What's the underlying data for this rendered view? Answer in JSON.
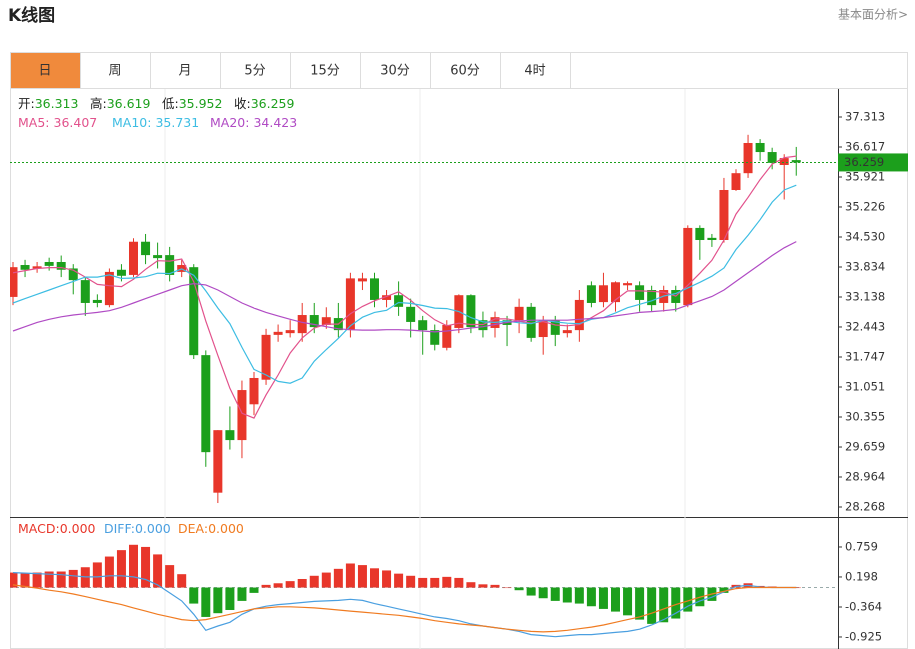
{
  "chart_data": {
    "type": "candlestick",
    "title": "K线图",
    "link": "基本面分析>",
    "tabs": [
      "日",
      "周",
      "月",
      "5分",
      "15分",
      "30分",
      "60分",
      "4时"
    ],
    "active_tab": 0,
    "up_color": "#e8362a",
    "down_color": "#1c9f1c",
    "ohlc_labels": [
      "开:",
      "高:",
      "低:",
      "收:"
    ],
    "open": [
      33.14,
      33.88,
      33.8,
      33.95,
      33.95,
      33.8,
      33.53,
      33.07,
      32.95,
      33.77,
      33.65,
      34.42,
      34.11,
      34.11,
      33.72,
      33.83,
      31.79,
      28.6,
      30.05,
      29.82,
      30.65,
      31.22,
      32.26,
      32.3,
      32.3,
      32.72,
      32.49,
      32.65,
      32.37,
      33.5,
      33.57,
      33.07,
      33.18,
      32.91,
      32.6,
      32.37,
      31.96,
      32.42,
      33.18,
      32.6,
      32.42,
      32.6,
      32.6,
      32.91,
      32.21,
      32.6,
      32.3,
      32.37,
      33.41,
      33.02,
      33.02,
      33.41,
      33.41,
      33.3,
      33.0,
      33.3,
      32.95,
      34.74,
      34.51,
      34.46,
      35.62,
      36.01,
      36.71,
      36.5,
      36.2,
      36.313
    ],
    "high": [
      33.95,
      34.0,
      33.95,
      34.05,
      34.1,
      33.9,
      33.6,
      33.2,
      33.8,
      33.9,
      34.5,
      34.6,
      34.4,
      34.3,
      34.0,
      33.9,
      31.9,
      30.05,
      30.6,
      31.2,
      31.4,
      32.4,
      32.5,
      32.6,
      33.0,
      33.0,
      32.9,
      33.0,
      33.7,
      33.7,
      33.7,
      33.3,
      33.5,
      33.1,
      32.7,
      32.5,
      32.6,
      33.2,
      33.2,
      32.8,
      32.8,
      32.7,
      33.1,
      33.0,
      32.7,
      32.7,
      32.5,
      33.3,
      33.5,
      33.7,
      33.5,
      33.5,
      33.5,
      33.4,
      33.4,
      33.4,
      34.8,
      34.8,
      34.6,
      35.9,
      36.1,
      36.9,
      36.8,
      36.6,
      36.45,
      36.619
    ],
    "low": [
      32.95,
      33.6,
      33.7,
      33.75,
      33.6,
      33.2,
      32.7,
      32.9,
      32.9,
      33.5,
      33.6,
      33.9,
      33.8,
      33.5,
      33.6,
      31.7,
      29.2,
      28.36,
      29.6,
      29.4,
      30.4,
      31.1,
      32.1,
      32.2,
      32.1,
      32.3,
      32.4,
      32.2,
      32.2,
      33.3,
      32.9,
      32.9,
      32.7,
      32.2,
      31.8,
      31.9,
      31.9,
      32.3,
      32.3,
      32.2,
      32.2,
      32.0,
      32.3,
      32.1,
      31.8,
      32.0,
      32.2,
      32.1,
      32.9,
      32.9,
      32.8,
      33.3,
      32.8,
      32.8,
      32.8,
      32.8,
      32.9,
      34.0,
      34.3,
      34.4,
      35.6,
      35.9,
      36.3,
      36.1,
      35.4,
      35.952
    ],
    "close": [
      33.83,
      33.77,
      33.85,
      33.86,
      33.77,
      33.53,
      33.0,
      33.0,
      33.72,
      33.63,
      34.42,
      34.11,
      34.04,
      33.65,
      33.88,
      31.79,
      29.54,
      30.05,
      29.82,
      30.98,
      31.26,
      32.26,
      32.33,
      32.37,
      32.72,
      32.44,
      32.67,
      32.37,
      33.57,
      33.57,
      33.07,
      33.18,
      32.91,
      32.56,
      32.37,
      32.03,
      32.49,
      33.18,
      32.44,
      32.37,
      32.67,
      32.49,
      32.91,
      32.19,
      32.6,
      32.26,
      32.37,
      33.07,
      33.0,
      33.41,
      33.48,
      33.46,
      33.07,
      32.95,
      33.3,
      33.0,
      34.74,
      34.46,
      34.46,
      35.62,
      36.01,
      36.71,
      36.5,
      36.25,
      36.36,
      36.259
    ],
    "ma": [
      {
        "name": "MA5:",
        "color": "#e2528c",
        "values": [
          33.7,
          33.75,
          33.8,
          33.82,
          33.82,
          33.76,
          33.6,
          33.43,
          33.4,
          33.38,
          33.55,
          33.78,
          33.98,
          33.97,
          34.02,
          33.49,
          32.58,
          31.78,
          31.02,
          30.44,
          30.33,
          30.87,
          31.33,
          31.84,
          32.19,
          32.42,
          32.51,
          32.51,
          32.75,
          32.92,
          33.05,
          33.15,
          33.26,
          33.06,
          32.82,
          32.61,
          32.47,
          32.53,
          32.5,
          32.5,
          32.63,
          32.63,
          32.58,
          32.53,
          32.57,
          32.49,
          32.47,
          32.5,
          32.66,
          32.82,
          33.07,
          33.28,
          33.28,
          33.27,
          33.25,
          33.16,
          33.41,
          33.69,
          33.99,
          34.46,
          35.06,
          35.45,
          35.86,
          36.22,
          36.37,
          36.407
        ]
      },
      {
        "name": "MA10:",
        "color": "#3dbde3",
        "values": [
          33.0,
          33.1,
          33.2,
          33.3,
          33.4,
          33.5,
          33.6,
          33.6,
          33.65,
          33.57,
          33.58,
          33.61,
          33.69,
          33.68,
          33.79,
          33.64,
          33.28,
          32.88,
          32.52,
          31.97,
          31.46,
          31.33,
          31.18,
          31.14,
          31.26,
          31.65,
          31.92,
          32.18,
          32.47,
          32.67,
          32.78,
          32.83,
          33.01,
          32.99,
          32.94,
          32.88,
          32.87,
          32.8,
          32.66,
          32.56,
          32.55,
          32.58,
          32.54,
          32.52,
          32.6,
          32.56,
          32.53,
          32.52,
          32.62,
          32.66,
          32.77,
          32.89,
          32.97,
          33.05,
          33.16,
          33.22,
          33.35,
          33.48,
          33.62,
          33.81,
          34.24,
          34.57,
          34.93,
          35.34,
          35.62,
          35.731
        ]
      },
      {
        "name": "MA20:",
        "color": "#b04bc4",
        "values": [
          32.35,
          32.45,
          32.55,
          32.62,
          32.68,
          32.72,
          32.75,
          32.78,
          32.82,
          32.9,
          33.0,
          33.1,
          33.2,
          33.3,
          33.4,
          33.45,
          33.42,
          33.3,
          33.15,
          33.0,
          32.88,
          32.78,
          32.7,
          32.62,
          32.55,
          32.5,
          32.45,
          32.4,
          32.38,
          32.37,
          32.37,
          32.38,
          32.38,
          32.37,
          32.35,
          32.33,
          32.35,
          32.38,
          32.42,
          32.45,
          32.5,
          32.55,
          32.58,
          32.6,
          32.6,
          32.6,
          32.6,
          32.62,
          32.64,
          32.66,
          32.7,
          32.74,
          32.78,
          32.8,
          32.82,
          32.85,
          32.95,
          33.05,
          33.15,
          33.3,
          33.5,
          33.7,
          33.9,
          34.1,
          34.28,
          34.423
        ]
      }
    ],
    "ylim": [
      28.036,
      37.939
    ],
    "yticks": [
      37.313,
      36.617,
      35.921,
      35.226,
      {
        "value": 34.53,
        "label": "34.530"
      },
      33.834,
      33.138,
      32.443,
      31.747,
      31.051,
      30.355,
      29.659,
      28.964,
      28.268
    ],
    "macd": [
      {
        "name": "MACD:",
        "color": "#e8362a",
        "last_value_label": "0.000",
        "values": [
          0.28,
          0.27,
          0.28,
          0.3,
          0.3,
          0.33,
          0.38,
          0.47,
          0.58,
          0.7,
          0.8,
          0.76,
          0.62,
          0.42,
          0.25,
          -0.3,
          -0.55,
          -0.48,
          -0.42,
          -0.25,
          -0.1,
          0.05,
          0.08,
          0.12,
          0.16,
          0.22,
          0.28,
          0.35,
          0.45,
          0.42,
          0.36,
          0.32,
          0.26,
          0.22,
          0.18,
          0.18,
          0.2,
          0.18,
          0.1,
          0.06,
          0.05,
          0.0,
          -0.05,
          -0.15,
          -0.2,
          -0.25,
          -0.28,
          -0.3,
          -0.35,
          -0.4,
          -0.45,
          -0.52,
          -0.6,
          -0.68,
          -0.65,
          -0.58,
          -0.45,
          -0.35,
          -0.25,
          -0.1,
          0.05,
          0.08,
          0.03,
          0.02,
          0.01,
          0.0
        ]
      },
      {
        "name": "DIFF:",
        "color": "#4a9fe0",
        "last_value_label": "0.000",
        "values": [
          0.28,
          0.27,
          0.26,
          0.25,
          0.24,
          0.22,
          0.2,
          0.2,
          0.22,
          0.22,
          0.2,
          0.15,
          0.05,
          -0.1,
          -0.25,
          -0.5,
          -0.8,
          -0.72,
          -0.65,
          -0.5,
          -0.4,
          -0.35,
          -0.32,
          -0.3,
          -0.28,
          -0.26,
          -0.25,
          -0.24,
          -0.22,
          -0.24,
          -0.3,
          -0.35,
          -0.4,
          -0.45,
          -0.5,
          -0.55,
          -0.58,
          -0.62,
          -0.68,
          -0.72,
          -0.75,
          -0.78,
          -0.82,
          -0.88,
          -0.9,
          -0.92,
          -0.9,
          -0.88,
          -0.88,
          -0.86,
          -0.84,
          -0.82,
          -0.78,
          -0.7,
          -0.6,
          -0.48,
          -0.35,
          -0.25,
          -0.18,
          -0.08,
          0.02,
          0.04,
          0.01,
          0.0,
          0.0,
          0.0
        ]
      },
      {
        "name": "DEA:",
        "color": "#f07b21",
        "last_value_label": "0.000",
        "values": [
          0.05,
          0.02,
          -0.01,
          -0.05,
          -0.08,
          -0.12,
          -0.17,
          -0.22,
          -0.27,
          -0.32,
          -0.38,
          -0.44,
          -0.5,
          -0.55,
          -0.6,
          -0.62,
          -0.6,
          -0.55,
          -0.5,
          -0.45,
          -0.4,
          -0.38,
          -0.36,
          -0.36,
          -0.37,
          -0.38,
          -0.4,
          -0.42,
          -0.44,
          -0.46,
          -0.48,
          -0.5,
          -0.52,
          -0.55,
          -0.58,
          -0.62,
          -0.65,
          -0.68,
          -0.7,
          -0.72,
          -0.75,
          -0.78,
          -0.8,
          -0.82,
          -0.83,
          -0.82,
          -0.8,
          -0.77,
          -0.74,
          -0.7,
          -0.65,
          -0.6,
          -0.55,
          -0.48,
          -0.4,
          -0.32,
          -0.25,
          -0.18,
          -0.12,
          -0.07,
          -0.02,
          0.0,
          0.0,
          0.0,
          0.0,
          0.0
        ]
      }
    ],
    "macd_ylim": [
      -1.15,
      1.32
    ],
    "macd_yticks": [
      0.759,
      0.198,
      -0.364,
      -0.925
    ]
  }
}
